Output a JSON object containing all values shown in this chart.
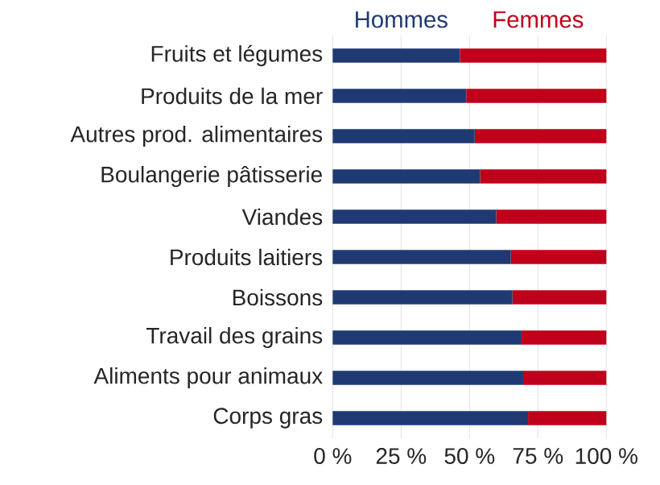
{
  "chart_data": {
    "type": "bar",
    "orientation": "horizontal",
    "stacked": true,
    "categories": [
      "Fruits et légumes",
      "Produits de la mer",
      "Autres prod. alimentaires",
      "Boulangerie pâtisserie",
      "Viandes",
      "Produits laitiers",
      "Boissons",
      "Travail des grains",
      "Aliments pour animaux",
      "Corps gras"
    ],
    "series": [
      {
        "name": "Hommes",
        "color": "#1f3a73",
        "values": [
          46.5,
          48.8,
          51.9,
          53.9,
          59.8,
          65.1,
          65.7,
          69.0,
          69.6,
          71.4
        ]
      },
      {
        "name": "Femmes",
        "color": "#c0001a",
        "values": [
          53.5,
          51.2,
          48.1,
          46.1,
          40.2,
          34.9,
          34.3,
          31.0,
          30.4,
          28.6
        ]
      }
    ],
    "xlim": [
      0,
      100
    ],
    "xticks": [
      {
        "value": 0,
        "label": "0 %"
      },
      {
        "value": 25,
        "label": "25 %"
      },
      {
        "value": 50,
        "label": "50 %"
      },
      {
        "value": 75,
        "label": "75 %"
      },
      {
        "value": 100,
        "label": "100 %"
      }
    ],
    "grid": "x",
    "legend": "top"
  }
}
